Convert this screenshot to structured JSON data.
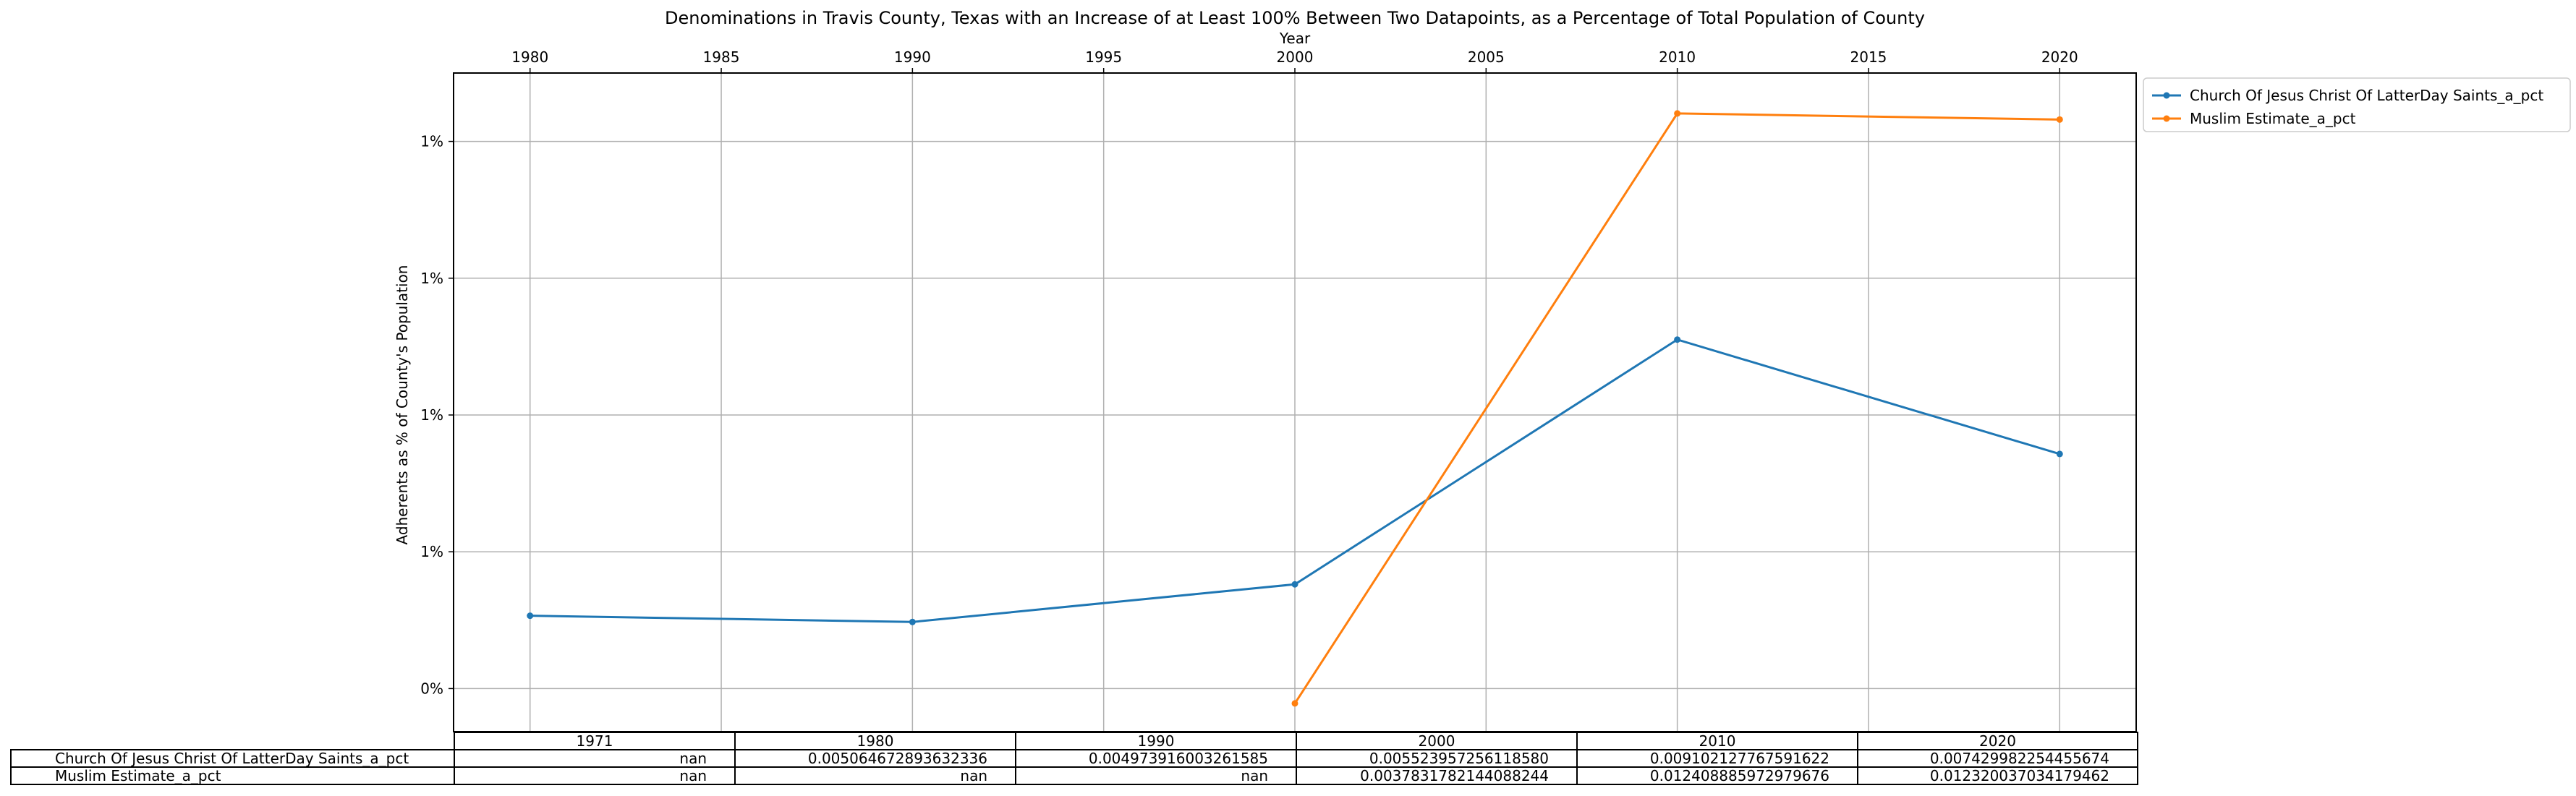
{
  "chart_data": {
    "type": "line",
    "title": "Denominations in Travis County, Texas with an Increase of at Least 100% Between Two Datapoints, as a Percentage of Total Population of County",
    "xlabel": "Year",
    "ylabel": "Adherents as % of County's Population",
    "x_ticks": [
      1980,
      1985,
      1990,
      1995,
      2000,
      2005,
      2010,
      2015,
      2020
    ],
    "x_tick_labels": [
      "1980",
      "1985",
      "1990",
      "1995",
      "2000",
      "2005",
      "2010",
      "2015",
      "2020"
    ],
    "xlim": [
      1978,
      2022
    ],
    "y_ticks": [
      0.004,
      0.006,
      0.008,
      0.01,
      0.012
    ],
    "y_tick_labels": [
      "0%",
      "1%",
      "1%",
      "1%",
      "1%"
    ],
    "ylim": [
      0.00337,
      0.013
    ],
    "grid": true,
    "legend_position": "outside top-right",
    "series": [
      {
        "name": "Church Of Jesus Christ Of LatterDay Saints_a_pct",
        "color": "#1f77b4",
        "x": [
          1980,
          1990,
          2000,
          2010,
          2020
        ],
        "y": [
          0.005064672893632336,
          0.004973916003261585,
          0.00552395725611858,
          0.009102127767591622,
          0.007429982254455674
        ]
      },
      {
        "name": "Muslim Estimate_a_pct",
        "color": "#ff7f0e",
        "x": [
          2000,
          2010,
          2020
        ],
        "y": [
          0.0037831782144088244,
          0.012408885972979676,
          0.012320037034179462
        ]
      }
    ],
    "table": {
      "columns": [
        "1971",
        "1980",
        "1990",
        "2000",
        "2010",
        "2020"
      ],
      "rows": [
        {
          "label": "Church Of Jesus Christ Of LatterDay Saints_a_pct",
          "cells": [
            "nan",
            "0.005064672893632336",
            "0.004973916003261585",
            "0.005523957256118580",
            "0.009102127767591622",
            "0.007429982254455674"
          ]
        },
        {
          "label": "Muslim Estimate_a_pct",
          "cells": [
            "nan",
            "nan",
            "nan",
            "0.0037831782144088244",
            "0.012408885972979676",
            "0.012320037034179462"
          ]
        }
      ]
    }
  }
}
